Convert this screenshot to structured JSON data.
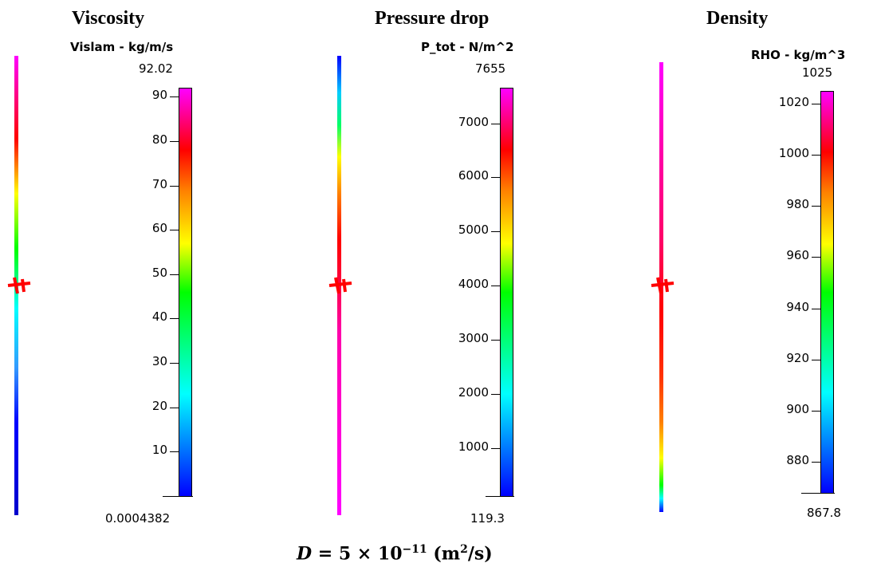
{
  "panels": [
    {
      "heading": "Viscosity",
      "variable_title": "Vislam - kg/m/s",
      "max_label": "92.02",
      "min_label": "0.0004382",
      "ticks": [
        "10",
        "20",
        "30",
        "40",
        "50",
        "60",
        "70",
        "80",
        "90"
      ],
      "colorbar": {
        "min": 0.0004382,
        "max": 92.02,
        "colormap": "rainbow (blue-cyan-green-yellow-red-magenta)"
      }
    },
    {
      "heading": "Pressure drop",
      "variable_title": "P_tot - N/m^2",
      "max_label": "7655",
      "min_label": "119.3",
      "ticks": [
        "1000",
        "2000",
        "3000",
        "4000",
        "5000",
        "6000",
        "7000"
      ],
      "colorbar": {
        "min": 119.3,
        "max": 7655,
        "colormap": "rainbow (blue-cyan-green-yellow-red-magenta)"
      }
    },
    {
      "heading": "Density",
      "variable_title": "RHO - kg/m^3",
      "max_label": "1025",
      "min_label": "867.8",
      "ticks": [
        "880",
        "900",
        "920",
        "940",
        "960",
        "980",
        "1000",
        "1020"
      ],
      "colorbar": {
        "min": 867.8,
        "max": 1025,
        "colormap": "rainbow (blue-cyan-green-yellow-red-magenta)"
      }
    }
  ],
  "formula": {
    "lhs": "D",
    "eq": " = 5 × 10",
    "exp": "−11",
    "unit_open": " (m",
    "unit_exp": "2",
    "unit_close": "/s)"
  },
  "colors": {
    "marker": "#ff0000",
    "text": "#000000"
  }
}
